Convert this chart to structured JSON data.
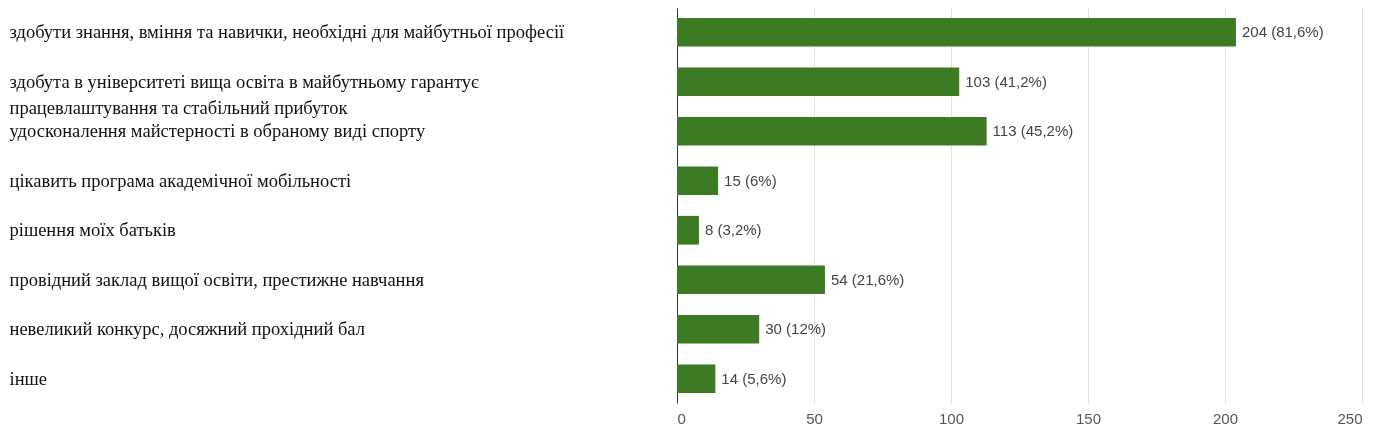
{
  "chart_data": {
    "type": "bar",
    "orientation": "horizontal",
    "categories": [
      "здобути знання, вміння та навички, необхідні для майбутньої професії",
      "здобута в університеті вища освіта в майбутньому гарантує працевлаштування та стабільний прибуток",
      "удосконалення майстерності в обраному виді спорту",
      "цікавить програма академічної мобільності",
      "рішення моїх батьків",
      "провідний заклад вищої освіти, престижне навчання",
      "невеликий конкурс, досяжний прохідний бал",
      "інше"
    ],
    "values": [
      204,
      103,
      113,
      15,
      8,
      54,
      30,
      14
    ],
    "value_labels": [
      "204 (81,6%)",
      "103 (41,2%)",
      "113 (45,2%)",
      "15 (6%)",
      "8 (3,2%)",
      "54 (21,6%)",
      "30 (12%)",
      "14 (5,6%)"
    ],
    "color": "#3d7a24",
    "xlim": [
      0,
      250
    ],
    "xticks": [
      0,
      50,
      100,
      150,
      200,
      250
    ],
    "grid": "x"
  }
}
